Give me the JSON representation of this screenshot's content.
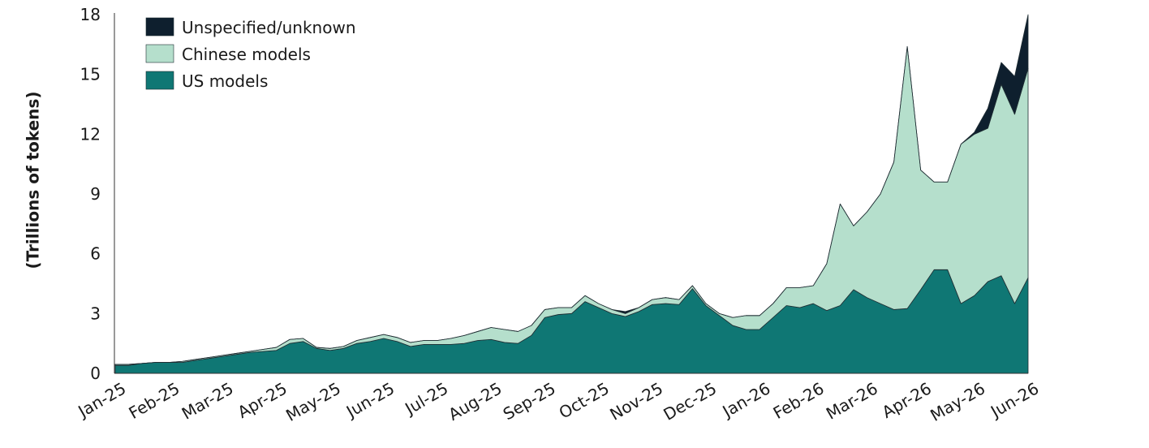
{
  "chart_data": {
    "type": "stacked_area",
    "y_label": "(Trillions of tokens)",
    "categories": [
      "Jan-25",
      null,
      null,
      null,
      "Feb-25",
      null,
      null,
      null,
      "Mar-25",
      null,
      null,
      null,
      "Apr-25",
      null,
      null,
      null,
      "May-25",
      null,
      null,
      null,
      "Jun-25",
      null,
      null,
      null,
      "Jul-25",
      null,
      null,
      null,
      "Aug-25",
      null,
      null,
      null,
      "Sep-25",
      null,
      null,
      null,
      "Oct-25",
      null,
      null,
      null,
      "Nov-25",
      null,
      null,
      null,
      "Dec-25",
      null,
      null,
      null,
      "Jan-26",
      null,
      null,
      null,
      "Feb-26",
      null,
      null,
      null,
      "Mar-26",
      null,
      null,
      null,
      "Apr-26",
      null,
      null,
      null,
      "May-26",
      null,
      null,
      null,
      "Jun-26"
    ],
    "series": [
      {
        "name": "US models",
        "color": "#0f7774",
        "values": [
          0.4,
          0.4,
          0.5,
          0.55,
          0.55,
          0.55,
          0.65,
          0.75,
          0.85,
          0.95,
          1.05,
          1.1,
          1.15,
          1.5,
          1.6,
          1.25,
          1.15,
          1.25,
          1.5,
          1.6,
          1.75,
          1.6,
          1.35,
          1.45,
          1.45,
          1.45,
          1.5,
          1.65,
          1.7,
          1.55,
          1.5,
          1.9,
          2.8,
          2.95,
          3.0,
          3.6,
          3.3,
          3.0,
          2.85,
          3.1,
          3.45,
          3.5,
          3.45,
          4.25,
          3.4,
          2.9,
          2.4,
          2.2,
          2.2,
          2.8,
          3.4,
          3.3,
          3.5,
          3.15,
          3.4,
          4.2,
          3.8,
          3.5,
          3.2,
          3.25,
          4.2,
          5.2,
          5.2,
          3.5,
          3.9,
          4.6,
          4.9,
          3.5,
          4.8
        ]
      },
      {
        "name": "Chinese models",
        "color": "#b5dfcc",
        "values": [
          0.05,
          0.05,
          0,
          0,
          0,
          0.05,
          0.05,
          0.05,
          0.05,
          0.05,
          0.05,
          0.1,
          0.15,
          0.2,
          0.15,
          0.05,
          0.1,
          0.1,
          0.15,
          0.2,
          0.2,
          0.2,
          0.2,
          0.2,
          0.2,
          0.3,
          0.4,
          0.45,
          0.6,
          0.65,
          0.6,
          0.5,
          0.4,
          0.35,
          0.3,
          0.3,
          0.2,
          0.2,
          0.15,
          0.2,
          0.25,
          0.3,
          0.25,
          0.15,
          0.1,
          0.1,
          0.4,
          0.7,
          0.7,
          0.7,
          0.9,
          1.0,
          0.9,
          2.35,
          5.1,
          3.2,
          4.3,
          5.5,
          7.4,
          13.15,
          6.0,
          4.4,
          4.4,
          8.0,
          8.1,
          7.7,
          9.6,
          9.5,
          10.5
        ]
      },
      {
        "name": "Unspecified/unknown",
        "color": "#0e1f2e",
        "values": [
          0,
          0,
          0,
          0,
          0,
          0,
          0,
          0,
          0,
          0,
          0,
          0,
          0,
          0,
          0,
          0,
          0,
          0,
          0,
          0,
          0,
          0,
          0,
          0,
          0,
          0,
          0,
          0,
          0,
          0,
          0,
          0,
          0,
          0,
          0,
          0,
          0,
          0,
          0.1,
          0,
          0,
          0,
          0,
          0,
          0,
          0,
          0,
          0,
          0,
          0,
          0,
          0,
          0,
          0,
          0,
          0,
          0,
          0,
          0,
          0,
          0,
          0,
          0,
          0,
          0.1,
          1.0,
          1.1,
          1.9,
          2.7
        ]
      }
    ],
    "ylim": [
      0,
      18
    ],
    "yticks": [
      0,
      3,
      6,
      9,
      12,
      15,
      18
    ],
    "grid": false,
    "legend": "upper left"
  }
}
